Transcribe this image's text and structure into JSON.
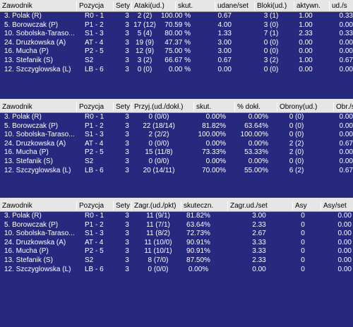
{
  "attack": {
    "headers": [
      "Zawodnik",
      "Pozycja",
      "Sety",
      "Ataki(ud.)",
      "skut.",
      "udane/set",
      "Bloki(ud.)",
      "aktywn.",
      "ud./s"
    ],
    "rows": [
      [
        "3. Polak (R)",
        "R0 - 1",
        "3",
        "2 (2)",
        "100.00 %",
        "0.67",
        "3 (1)",
        "1.00",
        "0.33"
      ],
      [
        "5. Borowczak (P)",
        "P1 - 2",
        "3",
        "17 (12)",
        "70.59 %",
        "4.00",
        "3 (0)",
        "1.00",
        "0.00"
      ],
      [
        "10. Sobolska-Taraso...",
        "S1 - 3",
        "3",
        "5 (4)",
        "80.00 %",
        "1.33",
        "7 (1)",
        "2.33",
        "0.33"
      ],
      [
        "24. Druzkowska (A)",
        "AT - 4",
        "3",
        "19 (9)",
        "47.37 %",
        "3.00",
        "0 (0)",
        "0.00",
        "0.00"
      ],
      [
        "16. Mucha (P)",
        "P2 - 5",
        "3",
        "12 (9)",
        "75.00 %",
        "3.00",
        "0 (0)",
        "0.00",
        "0.00"
      ],
      [
        "13. Stefanik (S)",
        "S2",
        "3",
        "3 (2)",
        "66.67 %",
        "0.67",
        "3 (2)",
        "1.00",
        "0.67"
      ],
      [
        "12. Szczyglowska (L)",
        "LB - 6",
        "3",
        "0 (0)",
        "0.00 %",
        "0.00",
        "0 (0)",
        "0.00",
        "0.00"
      ]
    ]
  },
  "reception": {
    "headers": [
      "Zawodnik",
      "Pozycja",
      "Sety",
      "Przyj.(ud./dokł.)",
      "skut.",
      "% dokł.",
      "Obrony(ud.)",
      "Obr./s"
    ],
    "rows": [
      [
        "3. Polak (R)",
        "R0 - 1",
        "3",
        "0 (0/0)",
        "0.00%",
        "0.00%",
        "0 (0)",
        "0.00"
      ],
      [
        "5. Borowczak (P)",
        "P1 - 2",
        "3",
        "22 (18/14)",
        "81.82%",
        "63.64%",
        "0 (0)",
        "0.00"
      ],
      [
        "10. Sobolska-Taraso...",
        "S1 - 3",
        "3",
        "2 (2/2)",
        "100.00%",
        "100.00%",
        "0 (0)",
        "0.00"
      ],
      [
        "24. Druzkowska (A)",
        "AT - 4",
        "3",
        "0 (0/0)",
        "0.00%",
        "0.00%",
        "2 (2)",
        "0.67"
      ],
      [
        "16. Mucha (P)",
        "P2 - 5",
        "3",
        "15 (11/8)",
        "73.33%",
        "53.33%",
        "2 (0)",
        "0.00"
      ],
      [
        "13. Stefanik (S)",
        "S2",
        "3",
        "0 (0/0)",
        "0.00%",
        "0.00%",
        "0 (0)",
        "0.00"
      ],
      [
        "12. Szczyglowska (L)",
        "LB - 6",
        "3",
        "20 (14/11)",
        "70.00%",
        "55.00%",
        "6 (2)",
        "0.67"
      ]
    ]
  },
  "serve": {
    "headers": [
      "Zawodnik",
      "Pozycja",
      "Sety",
      "Zagr.(ud./pkt)",
      "skuteczn.",
      "Zagr.ud./set",
      "Asy",
      "Asy/set"
    ],
    "rows": [
      [
        "3. Polak (R)",
        "R0 - 1",
        "3",
        "11 (9/1)",
        "81.82%",
        "3.00",
        "0",
        "0.00"
      ],
      [
        "5. Borowczak (P)",
        "P1 - 2",
        "3",
        "11 (7/1)",
        "63.64%",
        "2.33",
        "0",
        "0.00"
      ],
      [
        "10. Sobolska-Taraso...",
        "S1 - 3",
        "3",
        "11 (8/2)",
        "72.73%",
        "2.67",
        "0",
        "0.00"
      ],
      [
        "24. Druzkowska (A)",
        "AT - 4",
        "3",
        "11 (10/0)",
        "90.91%",
        "3.33",
        "0",
        "0.00"
      ],
      [
        "16. Mucha (P)",
        "P2 - 5",
        "3",
        "11 (10/1)",
        "90.91%",
        "3.33",
        "0",
        "0.00"
      ],
      [
        "13. Stefanik (S)",
        "S2",
        "3",
        "8 (7/0)",
        "87.50%",
        "2.33",
        "0",
        "0.00"
      ],
      [
        "12. Szczyglowska (L)",
        "LB - 6",
        "3",
        "0 (0/0)",
        "0.00%",
        "0.00",
        "0",
        "0.00"
      ]
    ]
  }
}
